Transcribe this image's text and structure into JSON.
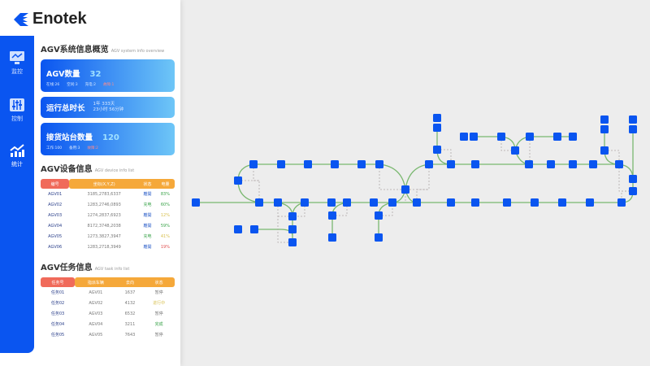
{
  "brand": {
    "name": "Enotek",
    "color": "#0a55f0"
  },
  "nav": [
    {
      "label": "监控",
      "icon": "monitor-icon"
    },
    {
      "label": "控制",
      "icon": "sliders-icon"
    },
    {
      "label": "统计",
      "icon": "chart-icon"
    }
  ],
  "overview": {
    "title": "AGV系统信息概览",
    "subtitle": "AGV system info overview",
    "agv_count": {
      "label": "AGV数量",
      "value": "32",
      "stats": [
        "在线:26",
        "空闲:3",
        "充电:2",
        "故障:1"
      ]
    },
    "runtime": {
      "label": "运行总时长",
      "line1": "1年 333天",
      "line2": "23小时 56分钟"
    },
    "stations": {
      "label": "接货站台数量",
      "value": "120",
      "stats": [
        "工作:100",
        "备用:3",
        "故障:2"
      ]
    }
  },
  "devices": {
    "title": "AGV设备信息",
    "subtitle": "AGV device info list",
    "headers": [
      "编号",
      "坐标(X,Y,Z)",
      "状态",
      "电量"
    ],
    "rows": [
      [
        "AGV01",
        "3185,2783,6337",
        "離開",
        "83%"
      ],
      [
        "AGV02",
        "1283,2746,0893",
        "充电",
        "60%"
      ],
      [
        "AGV03",
        "1274,2837,6923",
        "離開",
        "12%"
      ],
      [
        "AGV04",
        "8172,3748,2038",
        "離開",
        "59%"
      ],
      [
        "AGV05",
        "1273,3827,3947",
        "充电",
        "41%"
      ],
      [
        "AGV06",
        "1283,2718,3949",
        "離開",
        "19%"
      ]
    ]
  },
  "tasks": {
    "title": "AGV任务信息",
    "subtitle": "AGV task info list",
    "headers": [
      "任务号",
      "指派车辆",
      "去向",
      "状态"
    ],
    "rows": [
      [
        "任务01",
        "AGV01",
        "1637",
        "暂停"
      ],
      [
        "任务02",
        "AGV02",
        "4132",
        "进行中"
      ],
      [
        "任务03",
        "AGV03",
        "6532",
        "暂停"
      ],
      [
        "任务04",
        "AGV04",
        "3211",
        "完成"
      ],
      [
        "任务05",
        "AGV05",
        "7643",
        "暂停"
      ]
    ]
  },
  "colors": {
    "node": "#0a55f0",
    "track": "#7ab870",
    "link": "#b0a8a8",
    "map_bg": "#ededed"
  }
}
